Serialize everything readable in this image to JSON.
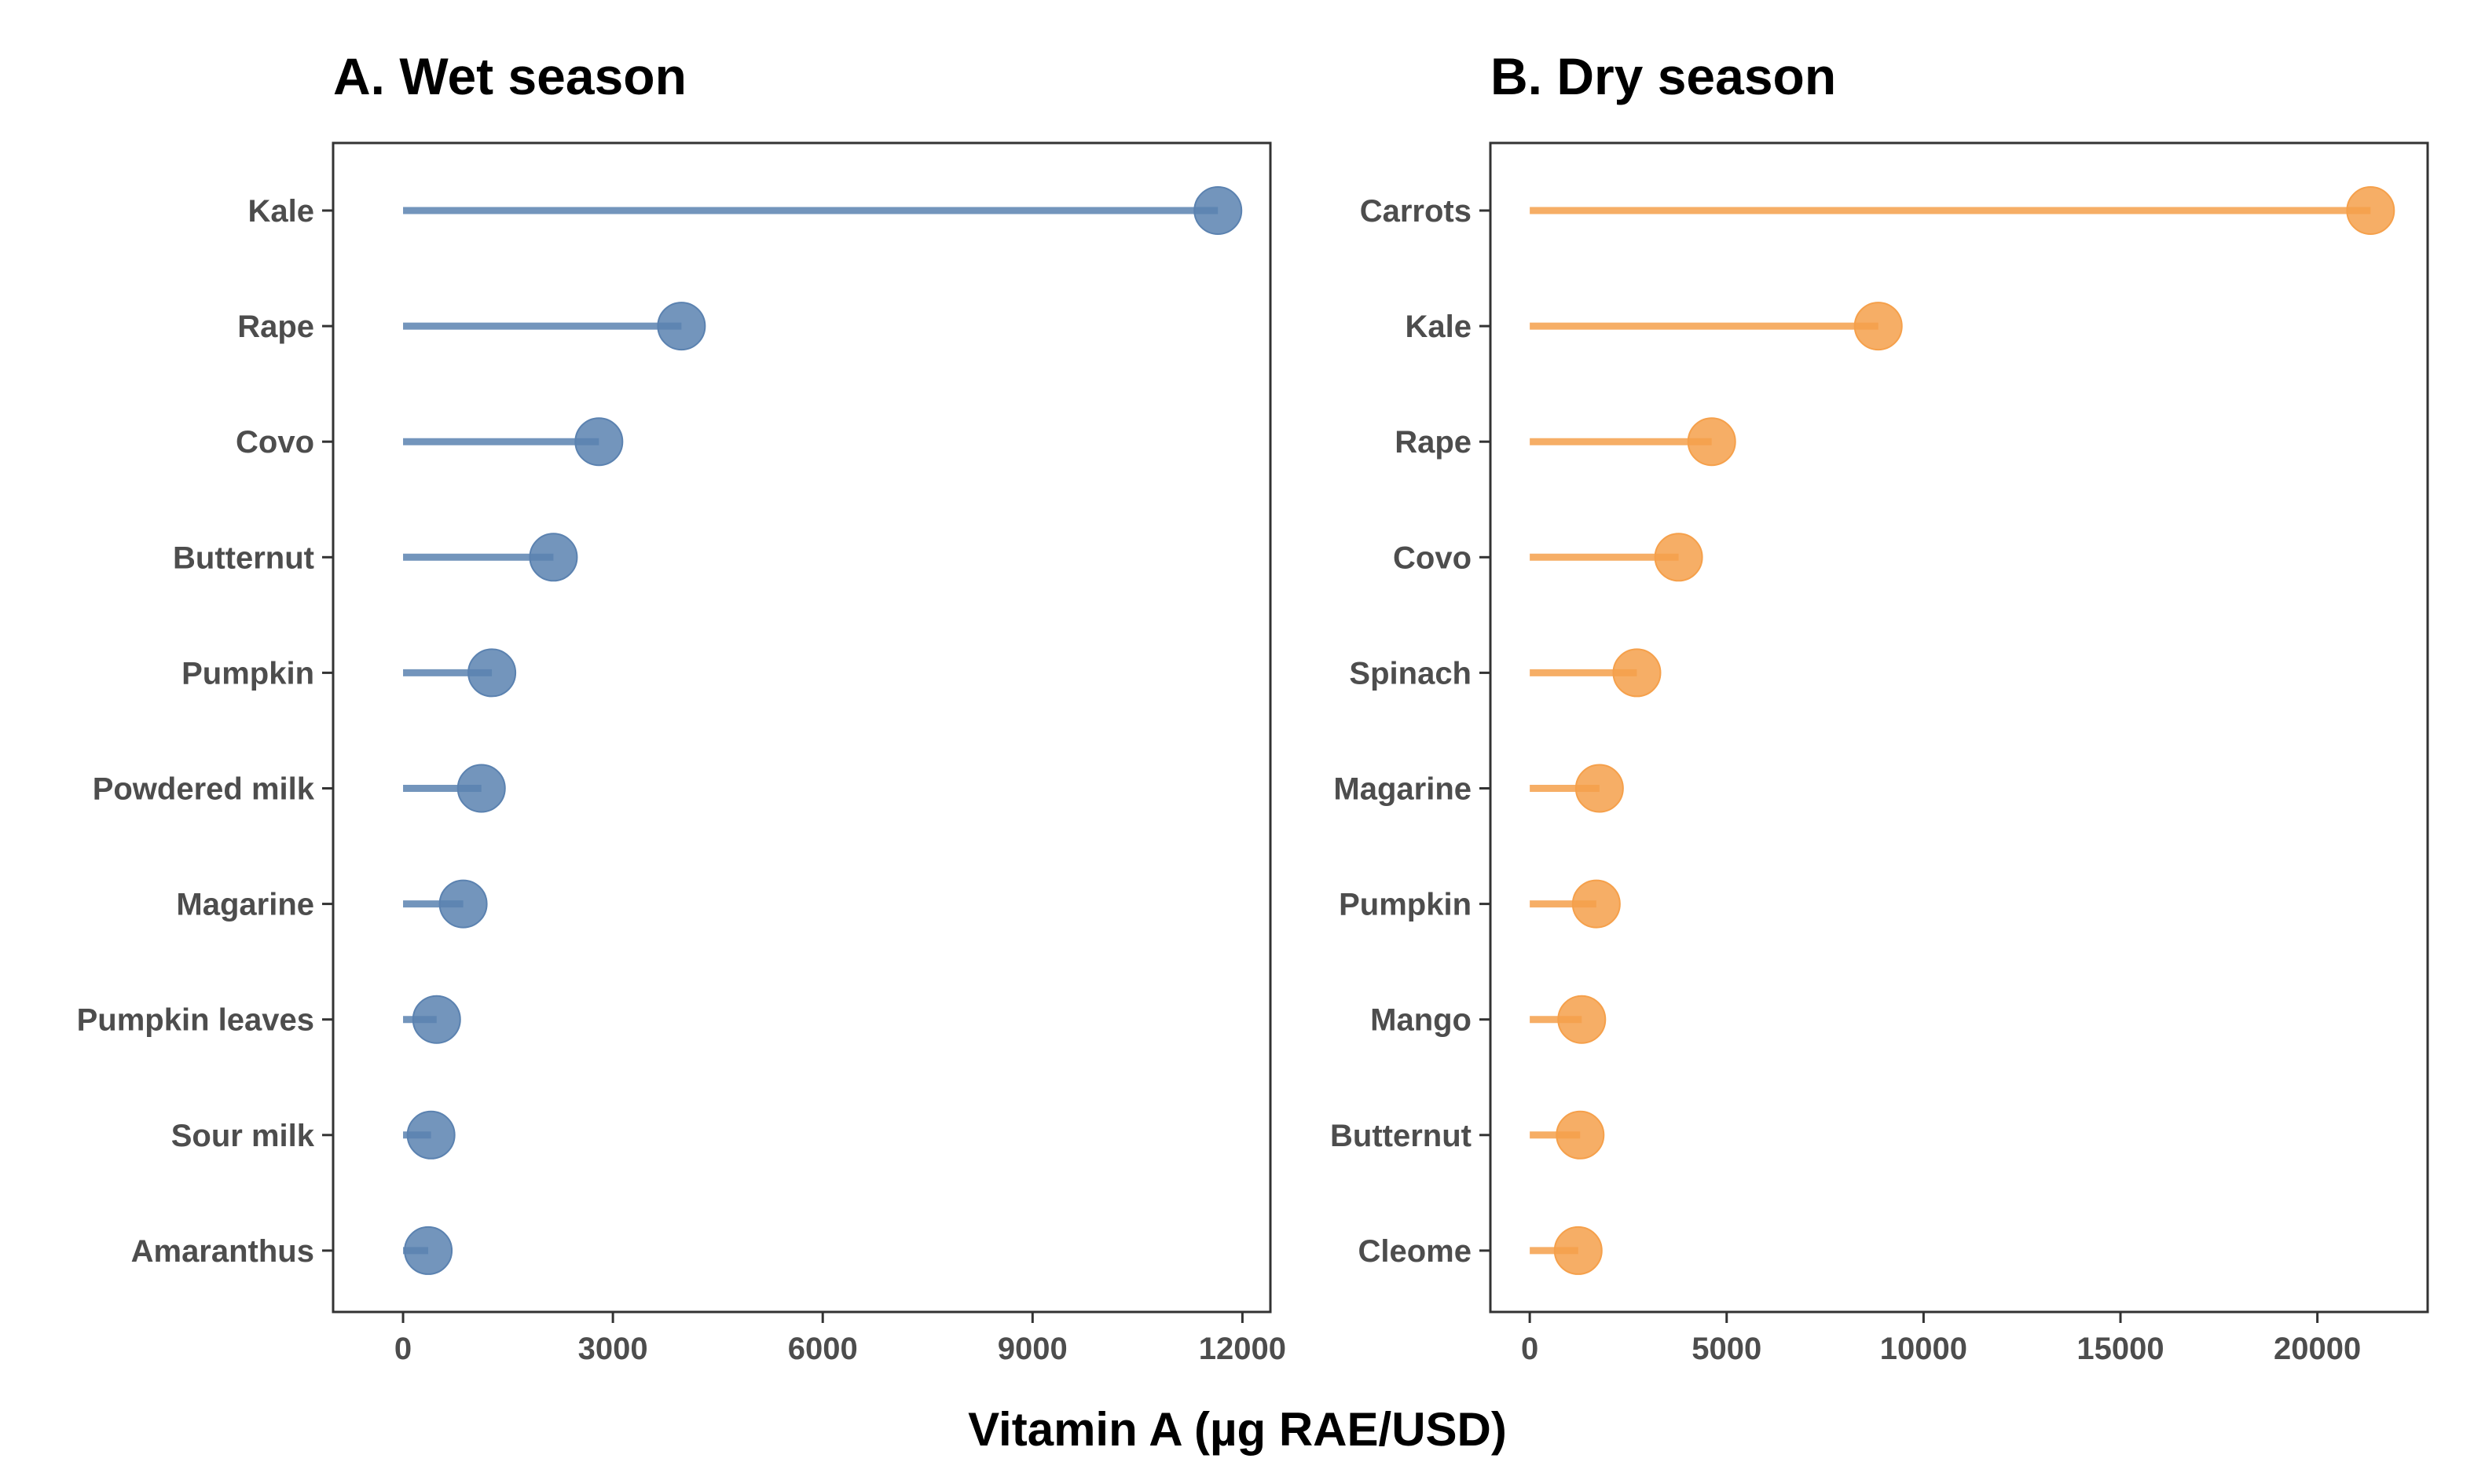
{
  "xlabel": "Vitamin A (µg RAE/USD)",
  "chart_data": [
    {
      "type": "lollipop",
      "title": "A. Wet season",
      "xlabel": "Vitamin A (µg RAE/USD)",
      "xlim": [
        -1000,
        12400
      ],
      "xticks": [
        0,
        3000,
        6000,
        9000,
        12000
      ],
      "color": "#5b82b0",
      "grid": false,
      "categories": [
        "Kale",
        "Rape",
        "Covo",
        "Butternut",
        "Pumpkin",
        "Powdered milk",
        "Magarine",
        "Pumpkin leaves",
        "Sour milk",
        "Amaranthus"
      ],
      "values": [
        11650,
        3980,
        2800,
        2150,
        1270,
        1120,
        860,
        480,
        400,
        360
      ]
    },
    {
      "type": "lollipop",
      "title": "B. Dry season",
      "xlabel": "Vitamin A (µg RAE/USD)",
      "xlim": [
        -1000,
        22800
      ],
      "xticks": [
        0,
        5000,
        10000,
        15000,
        20000
      ],
      "color": "#f5a04b",
      "grid": false,
      "categories": [
        "Carrots",
        "Kale",
        "Rape",
        "Covo",
        "Spinach",
        "Magarine",
        "Pumpkin",
        "Mango",
        "Butternut",
        "Cleome"
      ],
      "values": [
        21350,
        8850,
        4620,
        3780,
        2720,
        1770,
        1690,
        1320,
        1280,
        1230
      ]
    }
  ]
}
